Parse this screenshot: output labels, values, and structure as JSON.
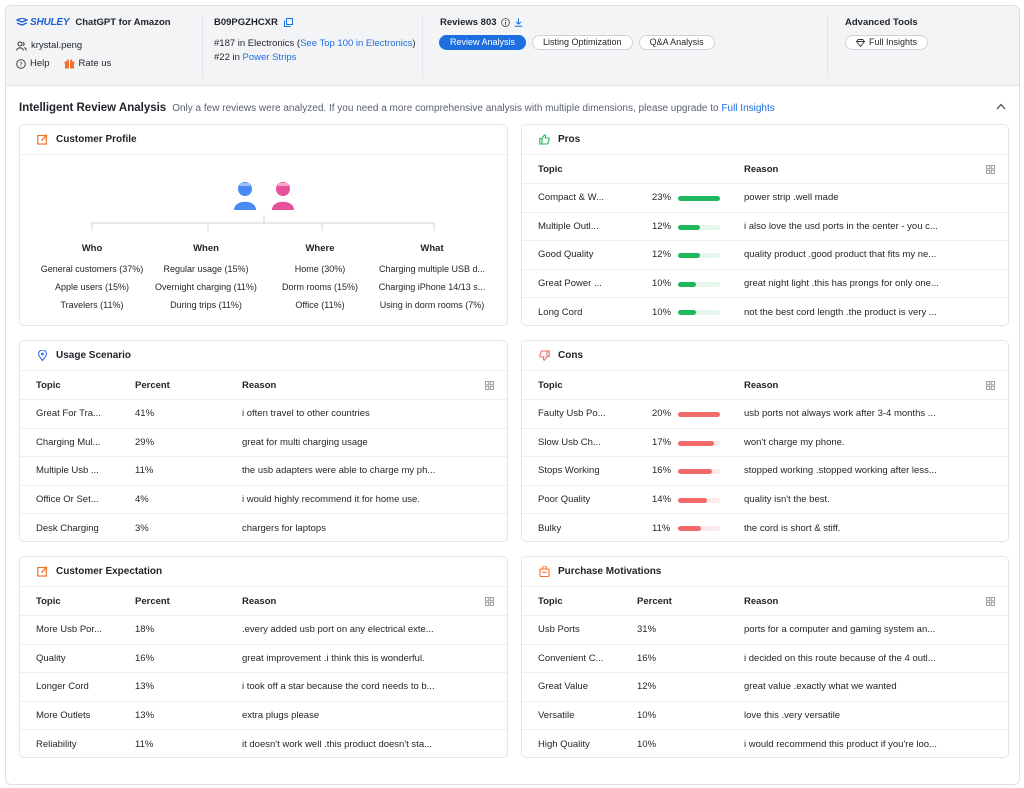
{
  "header": {
    "logo_text": "SHULEY",
    "app_name": "ChatGPT for Amazon",
    "username": "krystal.peng",
    "help_label": "Help",
    "rate_label": "Rate us",
    "asin": "B09PGZHCXR",
    "rank1_prefix": "#187 in Electronics (",
    "rank1_link": "See Top 100 in Electronics",
    "rank1_suffix": ")",
    "rank2_prefix": "#22 in ",
    "rank2_link": "Power Strips",
    "reviews_label": "Reviews 803",
    "tabs": [
      "Review Analysis",
      "Listing Optimization",
      "Q&A Analysis"
    ],
    "active_tab": "Review Analysis",
    "advanced_title": "Advanced Tools",
    "full_insights_btn": "Full Insights"
  },
  "main": {
    "title": "Intelligent Review Analysis",
    "subtitle": "Only a few reviews were analyzed. If you need a more comprehensive analysis with multiple dimensions, please upgrade to",
    "upgrade_link": "Full Insights"
  },
  "colors": {
    "accent": "#1d6fe0",
    "pros_bar": "#1fb85c",
    "pros_bar_bg": "#e6f7ec",
    "cons_bar": "#f06a6a",
    "cons_bar_bg": "#fdeaea",
    "icon_orange": "#f0722a"
  },
  "profile": {
    "title": "Customer Profile",
    "columns": [
      {
        "heading": "Who",
        "values": [
          "General customers (37%)",
          "Apple users (15%)",
          "Travelers (11%)"
        ]
      },
      {
        "heading": "When",
        "values": [
          "Regular usage (15%)",
          "Overnight charging (11%)",
          "During trips (11%)"
        ]
      },
      {
        "heading": "Where",
        "values": [
          "Home (30%)",
          "Dorm rooms (15%)",
          "Office (11%)"
        ]
      },
      {
        "heading": "What",
        "values": [
          "Charging multiple USB d...",
          "Charging iPhone 14/13 s...",
          "Using in dorm rooms (7%)"
        ]
      }
    ]
  },
  "pros": {
    "title": "Pros",
    "col_topic": "Topic",
    "col_reason": "Reason",
    "rows": [
      {
        "topic": "Compact & W...",
        "pct": "23%",
        "value": 23,
        "reason": "power strip .well made"
      },
      {
        "topic": "Multiple Outl...",
        "pct": "12%",
        "value": 12,
        "reason": "i also love the usd ports in the center - you c..."
      },
      {
        "topic": "Good Quality",
        "pct": "12%",
        "value": 12,
        "reason": "quality product .good product that fits my ne..."
      },
      {
        "topic": "Great Power ...",
        "pct": "10%",
        "value": 10,
        "reason": "great night light .this has prongs for only one..."
      },
      {
        "topic": "Long Cord",
        "pct": "10%",
        "value": 10,
        "reason": "not the best cord length .the product is very ..."
      }
    ]
  },
  "usage": {
    "title": "Usage Scenario",
    "col_topic": "Topic",
    "col_pct": "Percent",
    "col_reason": "Reason",
    "rows": [
      {
        "topic": "Great For Tra...",
        "pct": "41%",
        "reason": "i often travel to other countries"
      },
      {
        "topic": "Charging Mul...",
        "pct": "29%",
        "reason": "great for multi charging usage"
      },
      {
        "topic": "Multiple Usb ...",
        "pct": "11%",
        "reason": "the usb adapters were able to charge my ph..."
      },
      {
        "topic": "Office Or Set...",
        "pct": "4%",
        "reason": "i would highly recommend it for home use."
      },
      {
        "topic": "Desk Charging",
        "pct": "3%",
        "reason": "chargers for laptops"
      }
    ]
  },
  "cons": {
    "title": "Cons",
    "col_topic": "Topic",
    "col_reason": "Reason",
    "rows": [
      {
        "topic": "Faulty Usb Po...",
        "pct": "20%",
        "value": 20,
        "reason": "usb ports not always work after 3-4 months ..."
      },
      {
        "topic": "Slow Usb Ch...",
        "pct": "17%",
        "value": 17,
        "reason": "won't charge my phone."
      },
      {
        "topic": "Stops Working",
        "pct": "16%",
        "value": 16,
        "reason": "stopped working .stopped working after less..."
      },
      {
        "topic": "Poor Quality",
        "pct": "14%",
        "value": 14,
        "reason": "quality isn't the best."
      },
      {
        "topic": "Bulky",
        "pct": "11%",
        "value": 11,
        "reason": "the cord is short & stiff."
      }
    ]
  },
  "expectation": {
    "title": "Customer Expectation",
    "col_topic": "Topic",
    "col_pct": "Percent",
    "col_reason": "Reason",
    "rows": [
      {
        "topic": "More Usb Por...",
        "pct": "18%",
        "reason": ".every added usb port on any electrical exte..."
      },
      {
        "topic": "Quality",
        "pct": "16%",
        "reason": "great improvement .i think this is wonderful."
      },
      {
        "topic": "Longer Cord",
        "pct": "13%",
        "reason": "i took off a star because the cord needs to b..."
      },
      {
        "topic": "More Outlets",
        "pct": "13%",
        "reason": "extra plugs please"
      },
      {
        "topic": "Reliability",
        "pct": "11%",
        "reason": "it doesn't work well .this product doesn't sta..."
      }
    ]
  },
  "motivations": {
    "title": "Purchase Motivations",
    "col_topic": "Topic",
    "col_pct": "Percent",
    "col_reason": "Reason",
    "rows": [
      {
        "topic": "Usb Ports",
        "pct": "31%",
        "reason": "ports for a computer and gaming system an..."
      },
      {
        "topic": "Convenient C...",
        "pct": "16%",
        "reason": "i decided on this route because of the 4 outl..."
      },
      {
        "topic": "Great Value",
        "pct": "12%",
        "reason": "great value .exactly what we wanted"
      },
      {
        "topic": "Versatile",
        "pct": "10%",
        "reason": "love this .very versatile"
      },
      {
        "topic": "High Quality",
        "pct": "10%",
        "reason": "i would recommend this product if you're loo..."
      }
    ]
  }
}
